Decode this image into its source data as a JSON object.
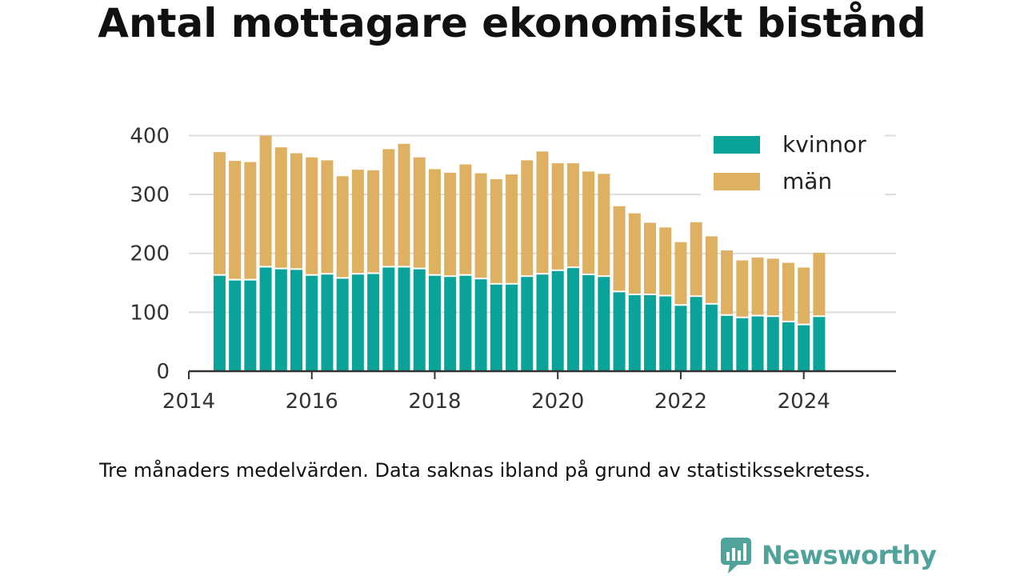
{
  "title": "Antal mottagare ekonomiskt bistånd",
  "note": "Tre månaders medelvärden. Data saknas ibland på grund av statistikssekretess.",
  "brand": {
    "name": "Newsworthy",
    "icon": "bar-chart-speech-bubble-icon",
    "color": "#4fa39a"
  },
  "colors": {
    "kvinnor": "#0aa39a",
    "man": "#deb062",
    "axis": "#333333",
    "grid": "#dddddd"
  },
  "chart_data": {
    "type": "bar",
    "stacked": true,
    "x_axis": {
      "ticks": [
        "2014",
        "2016",
        "2018",
        "2020",
        "2022",
        "2024"
      ],
      "range": [
        2014.0,
        2025.5
      ]
    },
    "y_axis": {
      "ticks": [
        0,
        100,
        200,
        300,
        400
      ],
      "range": [
        0,
        440
      ]
    },
    "grid": true,
    "legend": {
      "position": "top-right",
      "entries": [
        "kvinnor",
        "män"
      ]
    },
    "x": [
      2014.5,
      2014.75,
      2015.0,
      2015.25,
      2015.5,
      2015.75,
      2016.0,
      2016.25,
      2016.5,
      2016.75,
      2017.0,
      2017.25,
      2017.5,
      2017.75,
      2018.0,
      2018.25,
      2018.5,
      2018.75,
      2019.0,
      2019.25,
      2019.5,
      2019.75,
      2020.0,
      2020.25,
      2020.5,
      2020.75,
      2021.0,
      2021.25,
      2021.5,
      2021.75,
      2022.0,
      2022.25,
      2022.5,
      2022.75,
      2023.0,
      2023.25,
      2023.5,
      2023.75,
      2024.0,
      2024.25
    ],
    "series": [
      {
        "name": "kvinnor",
        "values": [
          162,
          154,
          154,
          176,
          173,
          172,
          162,
          164,
          157,
          164,
          165,
          176,
          176,
          173,
          162,
          160,
          162,
          156,
          147,
          147,
          160,
          164,
          170,
          175,
          163,
          160,
          134,
          129,
          129,
          127,
          111,
          126,
          113,
          94,
          90,
          93,
          92,
          83,
          78,
          92
        ]
      },
      {
        "name": "män",
        "values": [
          210,
          203,
          201,
          224,
          207,
          198,
          201,
          194,
          174,
          178,
          176,
          201,
          210,
          190,
          181,
          177,
          189,
          180,
          179,
          187,
          198,
          209,
          183,
          178,
          176,
          175,
          146,
          139,
          123,
          117,
          108,
          127,
          116,
          111,
          98,
          100,
          99,
          101,
          98,
          109
        ]
      }
    ]
  }
}
